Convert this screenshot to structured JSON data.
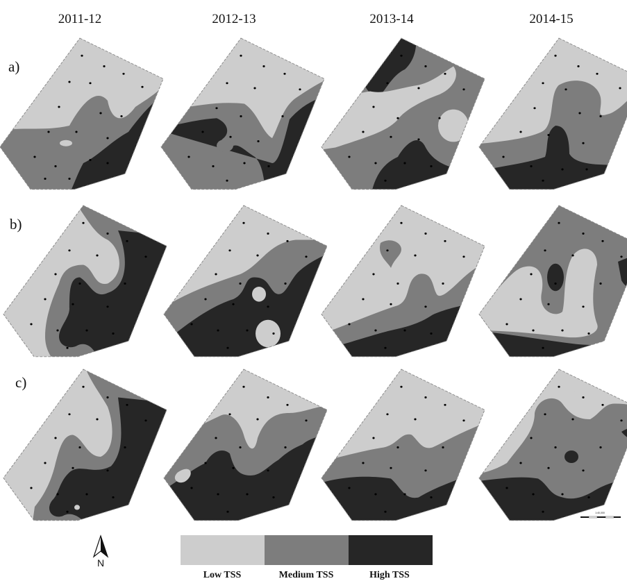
{
  "columns": [
    "2011-12",
    "2012-13",
    "2013-14",
    "2014-15"
  ],
  "rows": [
    "a)",
    "b)",
    "c)"
  ],
  "legend": {
    "items": [
      {
        "label": "Low TSS",
        "color": "#cdcdcd"
      },
      {
        "label": "Medium TSS",
        "color": "#7d7d7d"
      },
      {
        "label": "High TSS",
        "color": "#262626"
      }
    ]
  },
  "north_arrow": {
    "label": "N"
  },
  "scale_bar": {
    "label": "1:40,000"
  },
  "colors": {
    "low": "#cdcdcd",
    "medium": "#7d7d7d",
    "high": "#262626",
    "sample_point": "#000000",
    "boundary": "#8a8a8a"
  }
}
